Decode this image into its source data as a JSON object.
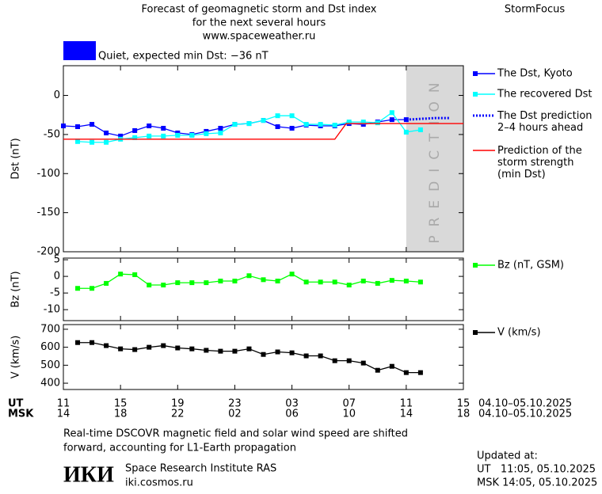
{
  "header": {
    "title_lines": [
      "Forecast of geomagnetic storm and Dst index",
      "for the next several hours",
      "www.spaceweather.ru"
    ],
    "brand": "StormFocus"
  },
  "status": {
    "text": "Quiet, expected min Dst: −36 nT",
    "color": "#0000ff"
  },
  "chart_data": [
    {
      "type": "line",
      "ylabel": "Dst (nT)",
      "xlim": [
        0,
        28
      ],
      "ylim": [
        -200,
        38
      ],
      "yticks": [
        0,
        -50,
        -100,
        -150,
        -200
      ],
      "prediction_region": [
        24,
        28
      ],
      "prediction_label": "PREDICTION",
      "series": [
        {
          "name": "The Dst, Kyoto",
          "color": "#0000ff",
          "marker": "square",
          "x": [
            0,
            1,
            2,
            3,
            4,
            5,
            6,
            7,
            8,
            9,
            10,
            11,
            12,
            13,
            14,
            15,
            16,
            17,
            18,
            19,
            20,
            21,
            22,
            23,
            24
          ],
          "values": [
            -39,
            -40,
            -37,
            -48,
            -52,
            -45,
            -39,
            -42,
            -48,
            -50,
            -46,
            -42,
            -37,
            -36,
            -32,
            -40,
            -42,
            -38,
            -39,
            -39,
            -36,
            -37,
            -34,
            -31,
            -31
          ]
        },
        {
          "name": "The recovered Dst",
          "color": "#00ffff",
          "marker": "square",
          "x": [
            1,
            2,
            3,
            4,
            5,
            6,
            7,
            8,
            9,
            10,
            11,
            12,
            13,
            14,
            15,
            16,
            17,
            18,
            19,
            20,
            21,
            22,
            23,
            24,
            25
          ],
          "values": [
            -59,
            -60,
            -60,
            -56,
            -54,
            -52,
            -52,
            -51,
            -51,
            -49,
            -48,
            -37,
            -36,
            -32,
            -26,
            -26,
            -37,
            -37,
            -38,
            -34,
            -34,
            -35,
            -22,
            -47,
            -44
          ]
        },
        {
          "name": "The Dst prediction\n2–4 hours ahead",
          "color": "#0000ff",
          "dash": true,
          "x": [
            24,
            25,
            26,
            27
          ],
          "values": [
            -31,
            -30,
            -29,
            -29
          ]
        },
        {
          "name": "Prediction of the\nstorm strength\n(min Dst)",
          "color": "#ff0000",
          "x": [
            0,
            19,
            19.8,
            28
          ],
          "values": [
            -56,
            -56,
            -36,
            -36
          ]
        }
      ]
    },
    {
      "type": "line",
      "ylabel": "Bz (nT)",
      "xlim": [
        0,
        28
      ],
      "ylim": [
        -13.3,
        5.5
      ],
      "yticks": [
        5,
        0,
        -5,
        -10
      ],
      "series": [
        {
          "name": "Bz (nT, GSM)",
          "color": "#00ff00",
          "marker": "square",
          "x": [
            1,
            2,
            3,
            4,
            5,
            6,
            7,
            8,
            9,
            10,
            11,
            12,
            13,
            14,
            15,
            16,
            17,
            18,
            19,
            20,
            21,
            22,
            23,
            24,
            25
          ],
          "values": [
            -3.6,
            -3.6,
            -2.1,
            0.7,
            0.5,
            -2.6,
            -2.6,
            -1.9,
            -1.9,
            -1.9,
            -1.4,
            -1.4,
            0.2,
            -1,
            -1.4,
            0.7,
            -1.7,
            -1.7,
            -1.7,
            -2.6,
            -1.4,
            -2.1,
            -1.2,
            -1.4,
            -1.7
          ]
        }
      ]
    },
    {
      "type": "line",
      "ylabel": "V (km/s)",
      "xlim": [
        0,
        28
      ],
      "ylim": [
        365,
        726
      ],
      "yticks": [
        700,
        600,
        500,
        400
      ],
      "series": [
        {
          "name": "V (km/s)",
          "color": "#000000",
          "marker": "square",
          "x": [
            1,
            2,
            3,
            4,
            5,
            6,
            7,
            8,
            9,
            10,
            11,
            12,
            13,
            14,
            15,
            16,
            17,
            18,
            19,
            20,
            21,
            22,
            23,
            24,
            25
          ],
          "values": [
            626,
            626,
            609,
            591,
            587,
            600,
            609,
            596,
            591,
            583,
            578,
            578,
            591,
            560,
            574,
            569,
            552,
            552,
            525,
            525,
            512,
            472,
            494,
            459,
            459
          ]
        }
      ],
      "xlabel_ut": "UT",
      "xlabel_msk": "MSK",
      "xticks": [
        {
          "value": 0,
          "label": "11"
        },
        {
          "value": 4,
          "label": "15"
        },
        {
          "value": 8,
          "label": "19"
        },
        {
          "value": 12,
          "label": "23"
        },
        {
          "value": 16,
          "label": "03"
        },
        {
          "value": 20,
          "label": "07"
        },
        {
          "value": 24,
          "label": "11"
        },
        {
          "value": 28,
          "label": "15"
        }
      ],
      "xticks_msk": [
        {
          "value": 0,
          "label": "14"
        },
        {
          "value": 4,
          "label": "18"
        },
        {
          "value": 8,
          "label": "22"
        },
        {
          "value": 12,
          "label": "02"
        },
        {
          "value": 16,
          "label": "06"
        },
        {
          "value": 20,
          "label": "10"
        },
        {
          "value": 24,
          "label": "14"
        },
        {
          "value": 28,
          "label": "18"
        }
      ],
      "date_range_ut": "04.10–05.10.2025",
      "date_range_msk": "04.10–05.10.2025"
    }
  ],
  "footer": {
    "note_lines": [
      "Real-time DSCOVR magnetic field and solar wind speed are shifted",
      "forward, accounting for L1-Earth propagation"
    ],
    "logo": "ИКИ",
    "institute": "Space Research Institute RAS",
    "site": "iki.cosmos.ru",
    "updated_label": "Updated at:",
    "updated_ut": "UT   11:05, 05.10.2025",
    "updated_msk": "MSK 14:05, 05.10.2025"
  }
}
